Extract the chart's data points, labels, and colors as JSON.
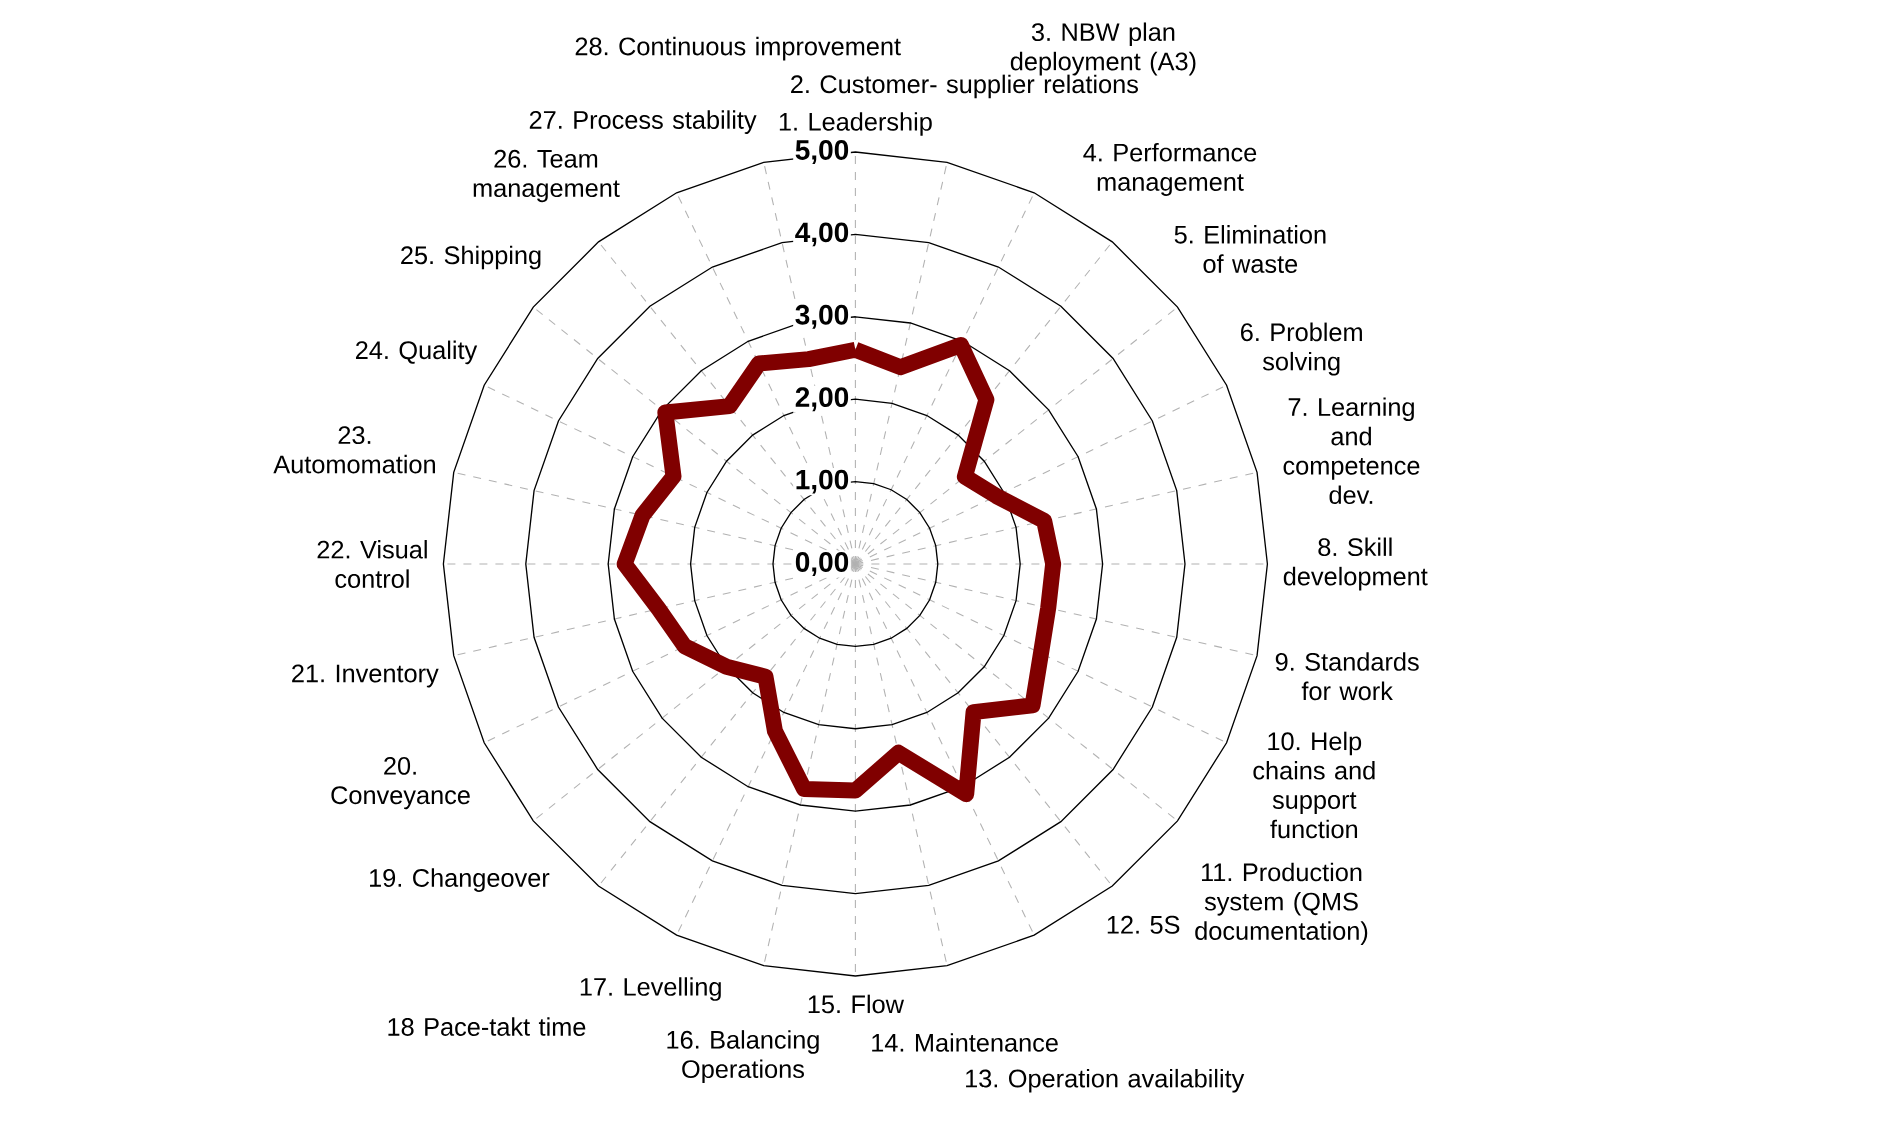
{
  "chart_data": {
    "type": "radar",
    "categories": [
      "1. Leadership",
      "2. Customer- supplier relations",
      "3. NBW plan deployment (A3)",
      "4. Performance management",
      "5. Elimination of waste",
      "6. Problem solving",
      "7. Learning and competence dev.",
      "8. Skill development",
      "9. Standards for work",
      "10. Help chains and support function",
      "11. Production system (QMS documentation)",
      "12. 5S",
      "13. Operation availability",
      "14. Maintenance",
      "15. Flow",
      "16. Balancing Operations",
      "17. Levelling",
      "18 Pace-takt time",
      "19. Changeover",
      "20. Conveyance",
      "21. Inventory",
      "22. Visual control",
      "23. Automomation",
      "24. Quality",
      "25. Shipping",
      "26. Team management",
      "27. Process stability",
      "28. Continuous improvement"
    ],
    "series": [
      {
        "color": "#800000",
        "values": [
          2.6,
          2.45,
          2.95,
          2.55,
          1.7,
          1.9,
          2.35,
          2.4,
          2.4,
          2.5,
          2.75,
          2.3,
          3.1,
          2.35,
          2.75,
          2.8,
          2.25,
          1.75,
          2.0,
          2.3,
          2.45,
          2.8,
          2.65,
          2.45,
          2.95,
          2.45,
          2.7,
          2.55
        ]
      }
    ],
    "ylim": [
      0,
      5
    ],
    "yticks": [
      {
        "value": 0,
        "label": "0,00"
      },
      {
        "value": 1,
        "label": "1,00"
      },
      {
        "value": 2,
        "label": "2,00"
      },
      {
        "value": 3,
        "label": "3,00"
      },
      {
        "value": 4,
        "label": "4,00"
      },
      {
        "value": 5,
        "label": "5,00"
      }
    ],
    "grid": true
  }
}
